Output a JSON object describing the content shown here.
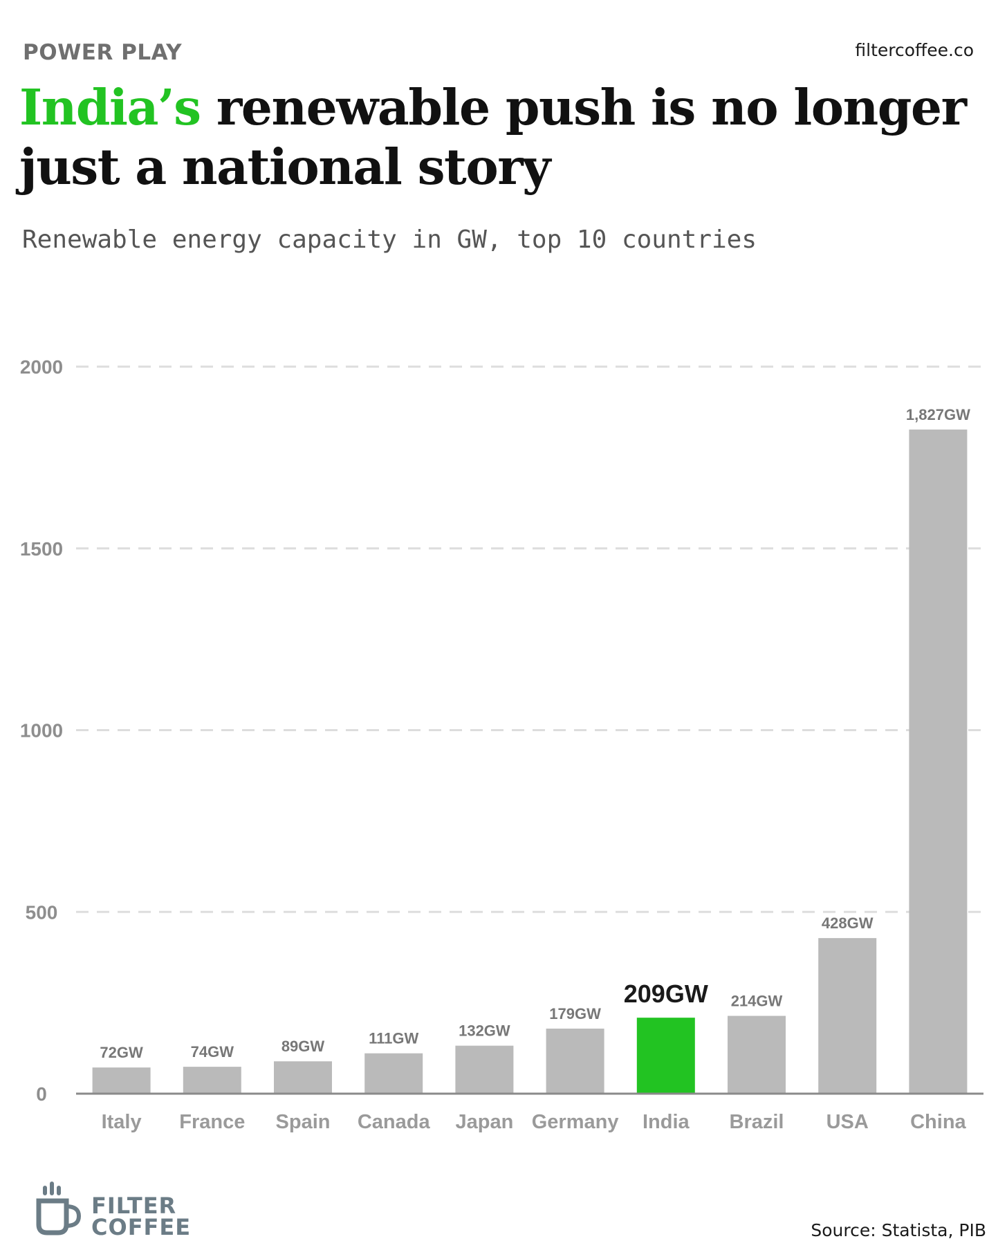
{
  "header": {
    "kicker": "POWER PLAY",
    "site": "filtercoffee.co",
    "headline_highlight": "India’s",
    "headline_rest": " renewable push is no longer just a national story",
    "subtitle": "Renewable energy capacity in GW, top 10 countries"
  },
  "colors": {
    "highlight": "#22c322",
    "bar": "#bababa",
    "grid": "#dddddd",
    "axis": "#8a8a8a"
  },
  "chart_data": {
    "type": "bar",
    "title": "Renewable energy capacity in GW, top 10 countries",
    "categories": [
      "Italy",
      "France",
      "Spain",
      "Canada",
      "Japan",
      "Germany",
      "India",
      "Brazil",
      "USA",
      "China"
    ],
    "values": [
      72,
      74,
      89,
      111,
      132,
      179,
      209,
      214,
      428,
      1827
    ],
    "value_labels": [
      "72GW",
      "74GW",
      "89GW",
      "111GW",
      "132GW",
      "179GW",
      "209GW",
      "214GW",
      "428GW",
      "1,827GW"
    ],
    "highlight": "India",
    "yticks": [
      0,
      500,
      1000,
      1500,
      2000
    ],
    "ylim": [
      0,
      2000
    ],
    "grid": true,
    "xlabel": "",
    "ylabel": ""
  },
  "footer": {
    "brand_line1": "FILTER",
    "brand_line2": "COFFEE",
    "source": "Source: Statista, PIB"
  }
}
